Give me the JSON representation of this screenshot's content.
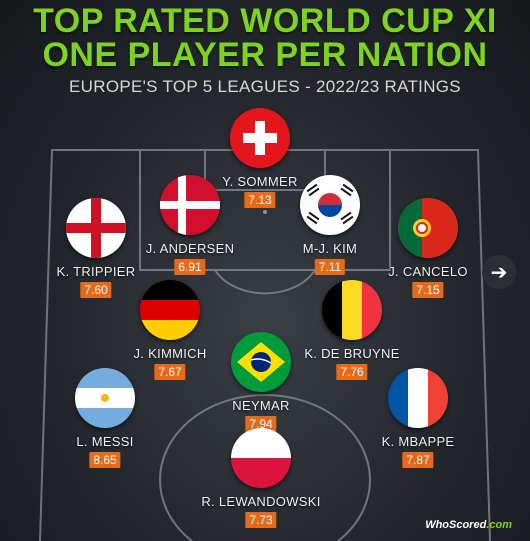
{
  "header": {
    "title_line1": "TOP RATED WORLD CUP XI",
    "title_line2": "ONE PLAYER PER NATION",
    "subtitle": "EUROPE'S TOP 5 LEAGUES - 2022/23 RATINGS"
  },
  "colors": {
    "title": "#7ed321",
    "rating_badge": "#e66a19",
    "pitch_line": "#8a8f94"
  },
  "players": [
    {
      "key": "sommer",
      "name": "Y. SOMMER",
      "rating": "7.13",
      "flag_icon": "switzerland-flag-icon"
    },
    {
      "key": "andersen",
      "name": "J. ANDERSEN",
      "rating": "6.91",
      "flag_icon": "denmark-flag-icon"
    },
    {
      "key": "kim",
      "name": "M-J. KIM",
      "rating": "7.11",
      "flag_icon": "south-korea-flag-icon"
    },
    {
      "key": "trippier",
      "name": "K. TRIPPIER",
      "rating": "7.60",
      "flag_icon": "england-flag-icon"
    },
    {
      "key": "cancelo",
      "name": "J. CANCELO",
      "rating": "7.15",
      "flag_icon": "portugal-flag-icon"
    },
    {
      "key": "kimmich",
      "name": "J. KIMMICH",
      "rating": "7.67",
      "flag_icon": "germany-flag-icon"
    },
    {
      "key": "debruyne",
      "name": "K. DE BRUYNE",
      "rating": "7.76",
      "flag_icon": "belgium-flag-icon"
    },
    {
      "key": "neymar",
      "name": "NEYMAR",
      "rating": "7.94",
      "flag_icon": "brazil-flag-icon"
    },
    {
      "key": "messi",
      "name": "L. MESSI",
      "rating": "8.65",
      "flag_icon": "argentina-flag-icon"
    },
    {
      "key": "mbappe",
      "name": "K. MBAPPE",
      "rating": "7.87",
      "flag_icon": "france-flag-icon"
    },
    {
      "key": "lewandowski",
      "name": "R. LEWANDOWSKI",
      "rating": "7.73",
      "flag_icon": "poland-flag-icon"
    }
  ],
  "nav": {
    "next_icon": "arrow-right-icon",
    "next_symbol": "➔"
  },
  "logo": {
    "brand": "WhoScored",
    "suffix": ".com"
  }
}
